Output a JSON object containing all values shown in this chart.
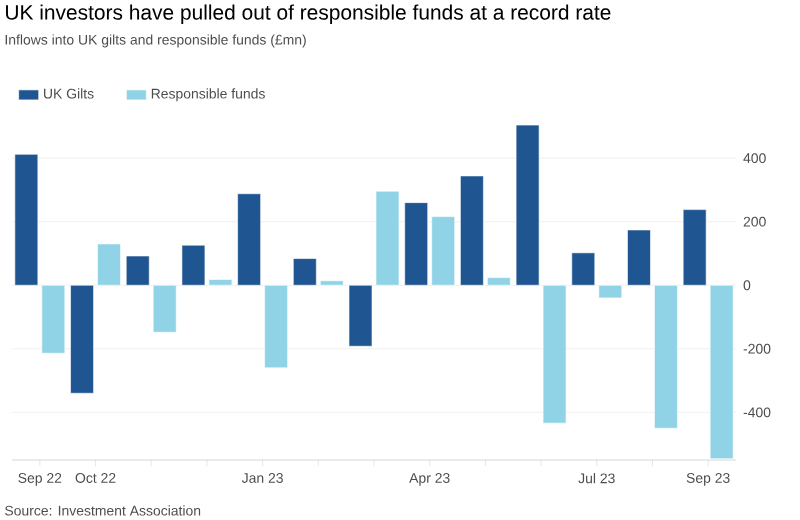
{
  "chart_data": {
    "type": "bar",
    "title": "UK investors have pulled out of responsible funds at a record rate",
    "subtitle": "Inflows into UK gilts and responsible funds (£mn)",
    "categories": [
      "Sep 22",
      "Oct 22",
      null,
      null,
      "Jan 23",
      null,
      null,
      "Apr 23",
      null,
      null,
      "Jul 23",
      null,
      "Sep 23"
    ],
    "series": [
      {
        "name": "UK Gilts",
        "color": "#1f5591",
        "values": [
          412,
          -340,
          92,
          126,
          288,
          84,
          -192,
          260,
          344,
          504,
          102,
          174,
          238
        ]
      },
      {
        "name": "Responsible funds",
        "color": "#91d3e6",
        "values": [
          -214,
          130,
          -148,
          18,
          -260,
          14,
          296,
          216,
          24,
          -434,
          -40,
          -450,
          -546
        ]
      }
    ],
    "ylim": [
      -550,
      520
    ],
    "yticks": [
      -400,
      -200,
      0,
      200,
      400
    ],
    "grid": "y",
    "legend": "top left",
    "annotations": [
      "Source: Investment Association"
    ]
  }
}
